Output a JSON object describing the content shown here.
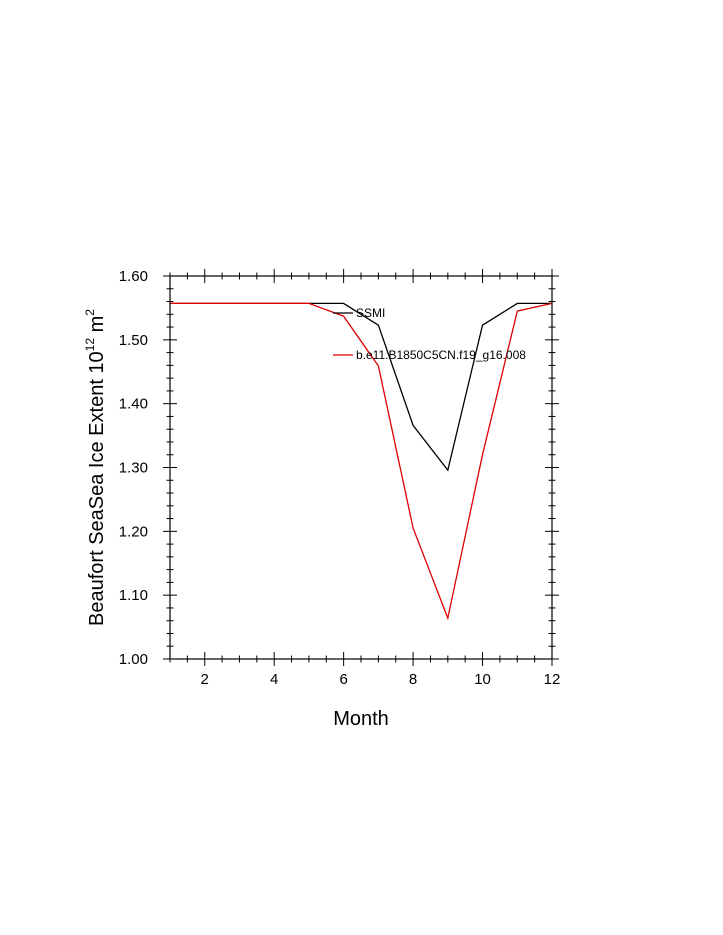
{
  "chart_data": {
    "type": "line",
    "xlabel": "Month",
    "ylabel": "Beaufort SeaSea Ice Extent 10",
    "ylabel_unit_exp": "12",
    "ylabel_unit": " m",
    "ylabel_unit_sq": "2",
    "xlim": [
      1,
      12
    ],
    "ylim": [
      1.0,
      1.6
    ],
    "x_ticks": [
      2,
      4,
      6,
      8,
      10,
      12
    ],
    "x_tick_labels": [
      "2",
      "4",
      "6",
      "8",
      "10",
      "12"
    ],
    "y_ticks": [
      1.0,
      1.1,
      1.2,
      1.3,
      1.4,
      1.5,
      1.6
    ],
    "y_tick_labels": [
      "1.00",
      "1.10",
      "1.20",
      "1.30",
      "1.40",
      "1.50",
      "1.60"
    ],
    "grid": false,
    "legend_position": "top-right",
    "x": [
      1,
      2,
      3,
      4,
      5,
      6,
      7,
      8,
      9,
      10,
      11,
      12
    ],
    "series": [
      {
        "name": "SSMI",
        "color": "#000000",
        "values": [
          1.557,
          1.557,
          1.557,
          1.557,
          1.557,
          1.557,
          1.523,
          1.366,
          1.296,
          1.523,
          1.557,
          1.557
        ]
      },
      {
        "name": "b.e11.B1850C5CN.f19_g16.008",
        "color": "#e00000",
        "values": [
          1.557,
          1.557,
          1.557,
          1.557,
          1.557,
          1.537,
          1.459,
          1.205,
          1.064,
          1.32,
          1.545,
          1.557
        ]
      }
    ]
  }
}
